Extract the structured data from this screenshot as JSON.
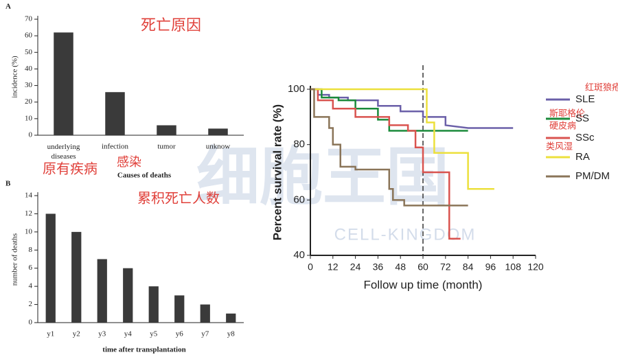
{
  "chart_data": [
    {
      "type": "bar",
      "panel": "A",
      "xlabel": "Causes of deaths",
      "ylabel": "incidence (%)",
      "categories": [
        "underlying diseases",
        "infection",
        "tumor",
        "unknow"
      ],
      "values": [
        62,
        26,
        6,
        4
      ],
      "color": "#3a3a3a",
      "ylim": [
        0,
        70
      ],
      "yticks": [
        0,
        10,
        20,
        30,
        40,
        50,
        60,
        70
      ],
      "annotations": [
        "死亡原因",
        "原有疾病",
        "感染"
      ]
    },
    {
      "type": "bar",
      "panel": "B",
      "xlabel": "time after transplantation",
      "ylabel": "number of deaths",
      "categories": [
        "y1",
        "y2",
        "y3",
        "y4",
        "y5",
        "y6",
        "y7",
        "y8"
      ],
      "values": [
        12,
        10,
        7,
        6,
        4,
        3,
        2,
        1
      ],
      "color": "#3a3a3a",
      "ylim": [
        0,
        14
      ],
      "yticks": [
        0,
        2,
        4,
        6,
        8,
        10,
        12,
        14
      ],
      "annotations": [
        "累积死亡人数"
      ]
    },
    {
      "type": "line",
      "xlabel": "Follow up time (month)",
      "ylabel": "Percent survival rate (%)",
      "xlim": [
        0,
        120
      ],
      "xticks": [
        0,
        12,
        24,
        36,
        48,
        60,
        72,
        84,
        96,
        108,
        120
      ],
      "ylim": [
        40,
        100
      ],
      "yticks": [
        40,
        60,
        80,
        100
      ],
      "reference_x": 60,
      "series": [
        {
          "name": "SLE",
          "color": "#6a5fa8",
          "x": [
            0,
            4,
            4,
            10,
            10,
            20,
            20,
            36,
            36,
            48,
            48,
            60,
            60,
            72,
            72,
            84,
            108
          ],
          "values": [
            100,
            100,
            98,
            98,
            97,
            97,
            96,
            96,
            94,
            94,
            92,
            92,
            90,
            90,
            87,
            86,
            86
          ]
        },
        {
          "name": "SS",
          "color": "#1a8a3a",
          "x": [
            0,
            6,
            6,
            15,
            15,
            24,
            24,
            36,
            36,
            42,
            42,
            84
          ],
          "values": [
            100,
            100,
            97,
            97,
            96,
            96,
            93,
            93,
            89,
            89,
            85,
            85
          ]
        },
        {
          "name": "SSc",
          "color": "#d9534f",
          "x": [
            0,
            4,
            4,
            12,
            12,
            24,
            24,
            42,
            42,
            52,
            52,
            56,
            56,
            60,
            60,
            74,
            74,
            80
          ],
          "values": [
            100,
            100,
            96,
            96,
            93,
            93,
            90,
            90,
            87,
            87,
            85,
            85,
            79,
            79,
            70,
            70,
            46,
            46
          ]
        },
        {
          "name": "RA",
          "color": "#ece03c",
          "x": [
            0,
            62,
            62,
            66,
            66,
            84,
            84,
            98
          ],
          "values": [
            100,
            100,
            88,
            88,
            77,
            77,
            64,
            64
          ]
        },
        {
          "name": "PM/DM",
          "color": "#8a7458",
          "x": [
            0,
            2,
            2,
            10,
            10,
            12,
            12,
            16,
            16,
            24,
            24,
            42,
            42,
            44,
            44,
            50,
            50,
            84
          ],
          "values": [
            100,
            100,
            90,
            90,
            86,
            86,
            80,
            80,
            72,
            72,
            71,
            71,
            64,
            64,
            60,
            60,
            58,
            58
          ]
        }
      ],
      "annotations": [
        "红斑狼疮",
        "斯耶格伦",
        "硬皮病",
        "类风湿"
      ]
    }
  ],
  "watermark": {
    "title": "细胞王国",
    "subtitle": "CELL-KINGDOM"
  }
}
